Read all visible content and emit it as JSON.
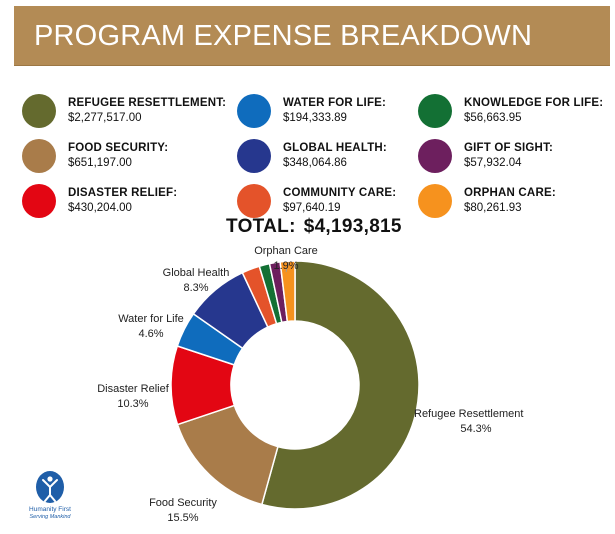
{
  "header": {
    "title": "PROGRAM EXPENSE BREAKDOWN"
  },
  "legend": [
    {
      "name": "REFUGEE RESETTLEMENT:",
      "amount": "$2,277,517.00",
      "color": "#646a2e"
    },
    {
      "name": "FOOD SECURITY:",
      "amount": "$651,197.00",
      "color": "#a97c4a"
    },
    {
      "name": "DISASTER RELIEF:",
      "amount": "$430,204.00",
      "color": "#e30613"
    },
    {
      "name": "WATER FOR LIFE:",
      "amount": "$194,333.89",
      "color": "#0f6cbd"
    },
    {
      "name": "GLOBAL HEALTH:",
      "amount": "$348,064.86",
      "color": "#26378e"
    },
    {
      "name": "COMMUNITY CARE:",
      "amount": "$97,640.19",
      "color": "#e4532a"
    },
    {
      "name": "KNOWLEDGE FOR LIFE:",
      "amount": "$56,663.95",
      "color": "#137034"
    },
    {
      "name": "GIFT OF SIGHT:",
      "amount": "$57,932.04",
      "color": "#6d1f5e"
    },
    {
      "name": "ORPHAN CARE:",
      "amount": "$80,261.93",
      "color": "#f6921e"
    }
  ],
  "total": {
    "label": "TOTAL:",
    "value": "$4,193,815"
  },
  "chart_data": {
    "type": "pie",
    "donut": true,
    "slices": [
      {
        "name": "Refugee Resettlement",
        "label": "Refugee Resettlement",
        "pct_label": "54.3%",
        "value": 2277517.0,
        "color": "#646a2e"
      },
      {
        "name": "Food Security",
        "label": "Food Security",
        "pct_label": "15.5%",
        "value": 651197.0,
        "color": "#a97c4a"
      },
      {
        "name": "Disaster Relief",
        "label": "Disaster Relief",
        "pct_label": "10.3%",
        "value": 430204.0,
        "color": "#e30613"
      },
      {
        "name": "Water for Life",
        "label": "Water for Life",
        "pct_label": "4.6%",
        "value": 194333.89,
        "color": "#0f6cbd"
      },
      {
        "name": "Global Health",
        "label": "Global Health",
        "pct_label": "8.3%",
        "value": 348064.86,
        "color": "#26378e"
      },
      {
        "name": "Community Care",
        "label": "",
        "pct_label": "",
        "value": 97640.19,
        "color": "#e4532a"
      },
      {
        "name": "Knowledge for Life",
        "label": "",
        "pct_label": "",
        "value": 56663.95,
        "color": "#137034"
      },
      {
        "name": "Gift of Sight",
        "label": "",
        "pct_label": "",
        "value": 57932.04,
        "color": "#6d1f5e"
      },
      {
        "name": "Orphan Care",
        "label": "Orphan Care",
        "pct_label": "1.9%",
        "value": 80261.93,
        "color": "#f6921e"
      }
    ]
  },
  "logo": {
    "name": "Humanity First",
    "tagline": "Serving Mankind",
    "color": "#1f5ea8"
  }
}
